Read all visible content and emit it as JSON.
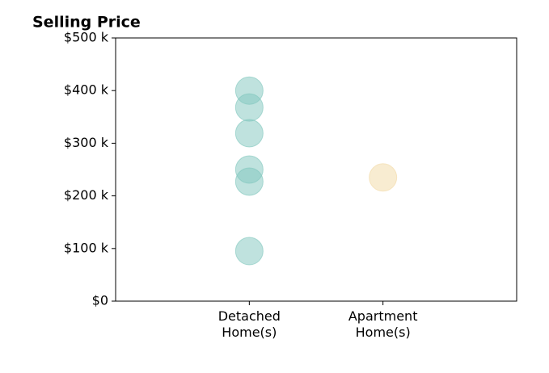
{
  "chart_data": {
    "type": "strip",
    "title": "Selling Price",
    "categories": [
      "Detached\nHome(s)",
      "Apartment\nHome(s)"
    ],
    "values": [
      [
        400,
        368,
        319,
        250,
        227,
        95
      ],
      [
        235
      ]
    ],
    "colors": [
      "#7fc6bd",
      "#f2d9a4"
    ],
    "ylim": [
      0,
      500
    ],
    "yticks": [
      {
        "value": 0,
        "label": "$0"
      },
      {
        "value": 100,
        "label": "$100 k"
      },
      {
        "value": 200,
        "label": "$200 k"
      },
      {
        "value": 300,
        "label": "$300 k"
      },
      {
        "value": 400,
        "label": "$400 k"
      },
      {
        "value": 500,
        "label": "$500 k"
      }
    ]
  }
}
